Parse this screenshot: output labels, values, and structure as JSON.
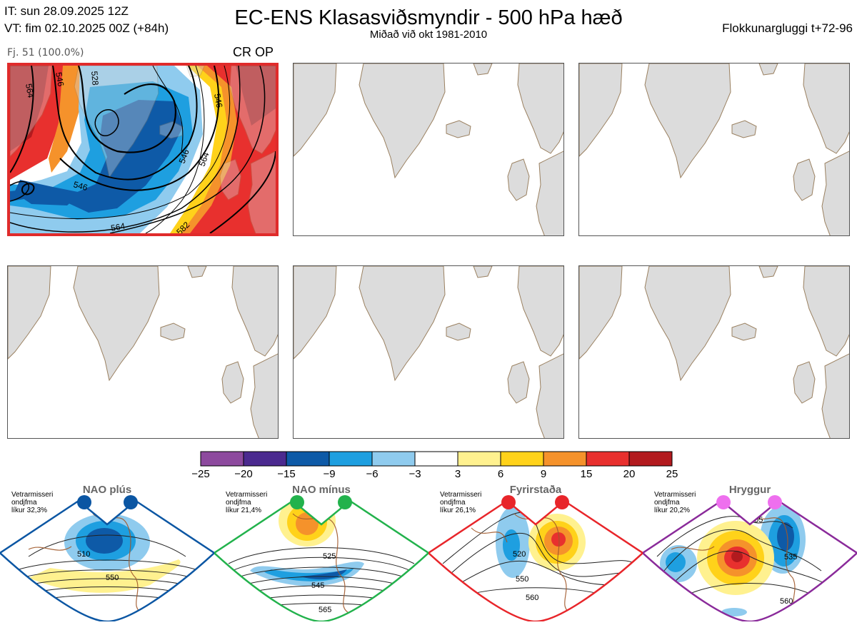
{
  "header": {
    "it_line": "IT: sun 28.09.2025 12Z",
    "vt_line": "VT: fim 02.10.2025 00Z  (+84h)",
    "title": "EC-ENS Klasasviðsmyndir - 500 hPa hæð",
    "subtitle": "Miðað við okt 1981-2010",
    "window_label": "Flokkunargluggi t+72-96"
  },
  "cluster": {
    "label": "Fj. 51 (100.0%)",
    "code": "CR OP",
    "contour_labels": [
      "564",
      "546",
      "528",
      "546",
      "546",
      "564",
      "546",
      "564",
      "582"
    ]
  },
  "colorbar": {
    "ticks": [
      "−25",
      "−20",
      "−15",
      "−9",
      "−6",
      "−3",
      "3",
      "6",
      "9",
      "15",
      "20",
      "25"
    ],
    "colors": [
      "#8d4a9e",
      "#4b2a8f",
      "#0e5aa7",
      "#1e9fe0",
      "#8fcbee",
      "#ffffff",
      "#fff18f",
      "#ffd21a",
      "#f5922b",
      "#e8302e",
      "#b21a1e"
    ]
  },
  "regimes": [
    {
      "name": "NAO plús",
      "note": [
        "Vetrarmisseri",
        "ondjfma",
        "líkur 32,3%"
      ],
      "dot_color": "#0b56a3",
      "frame_color": "#0b56a3",
      "contour_labels": [
        "510",
        "550"
      ]
    },
    {
      "name": "NAO mínus",
      "note": [
        "Vetrarmisseri",
        "ondjfma",
        "líkur 21,4%"
      ],
      "dot_color": "#22b24c",
      "frame_color": "#22b24c",
      "contour_labels": [
        "525",
        "545",
        "565"
      ]
    },
    {
      "name": "Fyrirstaða",
      "note": [
        "Vetrarmisseri",
        "ondjfma",
        "líkur 26,1%"
      ],
      "dot_color": "#e8252a",
      "frame_color": "#e8252a",
      "contour_labels": [
        "520",
        "550",
        "560"
      ]
    },
    {
      "name": "Hryggur",
      "note": [
        "Vetrarmisseri",
        "ondjfma",
        "líkur 20,2%"
      ],
      "dot_color": "#ee6fee",
      "frame_color": "#8a2a9a",
      "contour_labels": [
        "505",
        "535",
        "560"
      ]
    }
  ]
}
